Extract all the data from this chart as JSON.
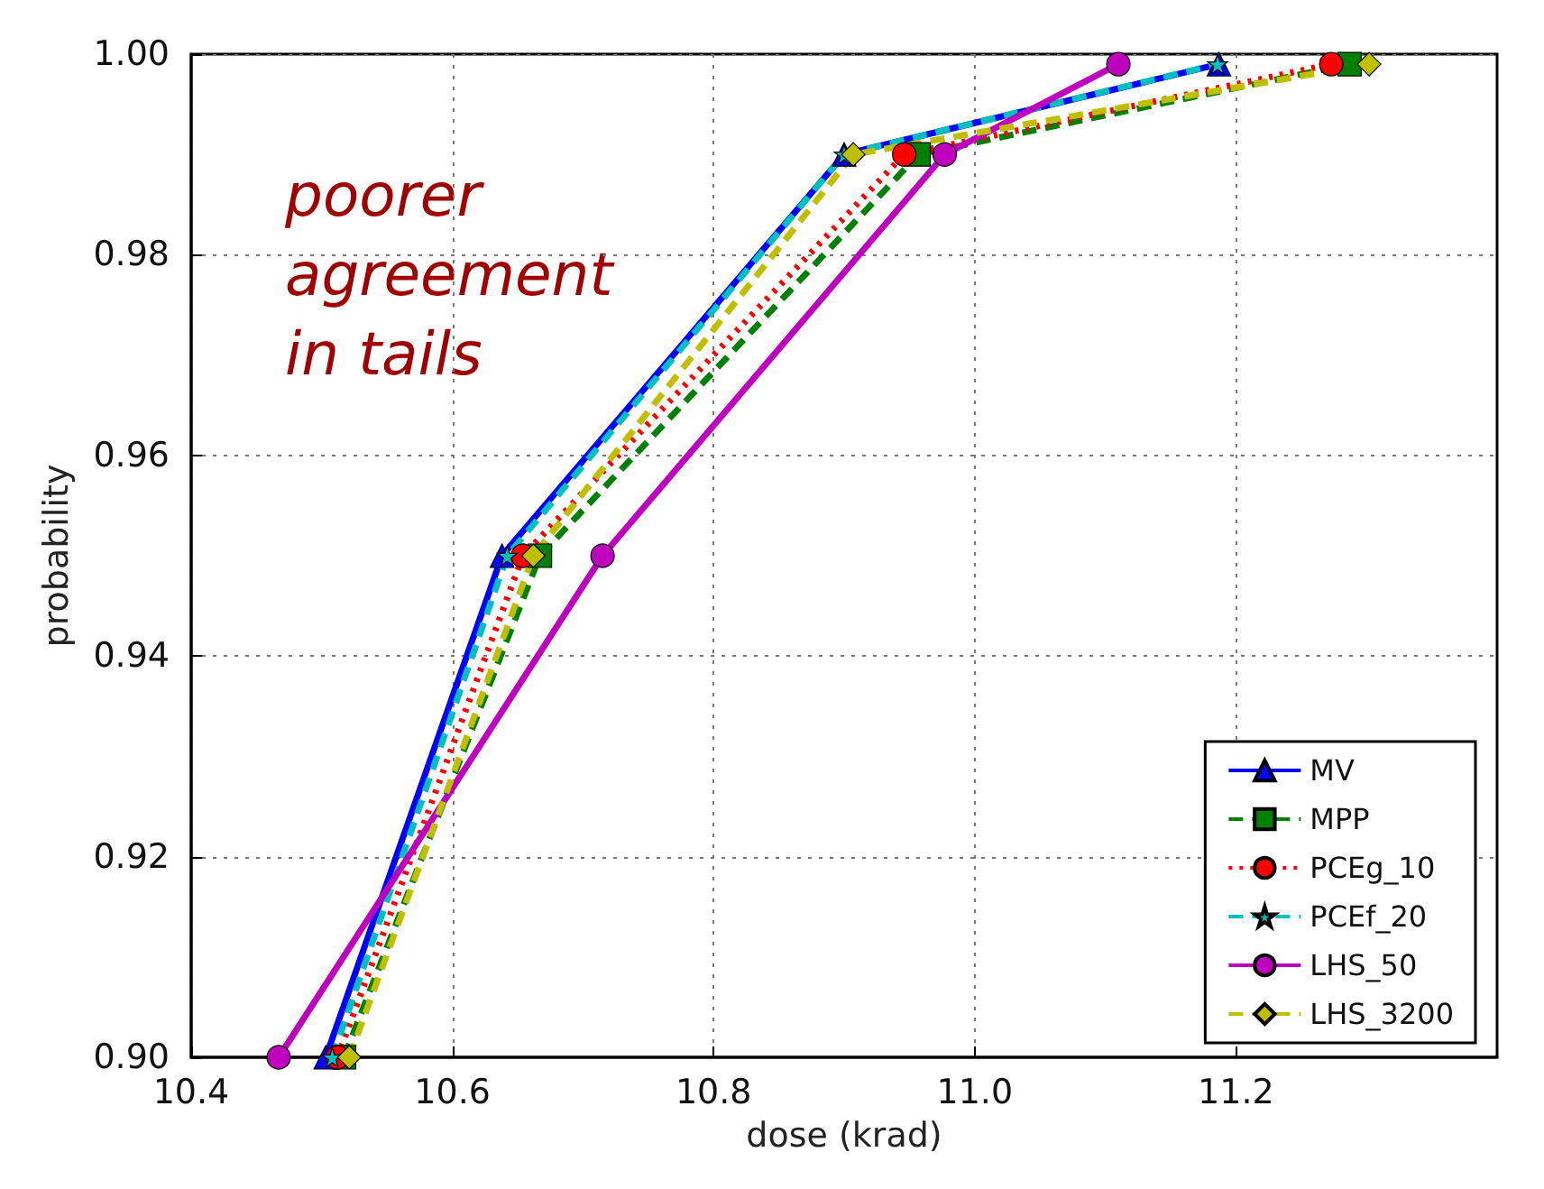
{
  "chart_data": {
    "type": "line",
    "xlabel": "dose (krad)",
    "ylabel": "probability",
    "xlim": [
      10.4,
      11.4
    ],
    "xticks": [
      10.4,
      10.6,
      10.8,
      {
        "value": 11,
        "label": "11.0"
      },
      11.2
    ],
    "ylim": [
      0.9,
      1
    ],
    "yticks": [
      {
        "value": 0.9,
        "label": "0.90"
      },
      {
        "value": 0.92,
        "label": "0.92"
      },
      {
        "value": 0.94,
        "label": "0.94"
      },
      {
        "value": 0.96,
        "label": "0.96"
      },
      {
        "value": 0.98,
        "label": "0.98"
      },
      {
        "value": 1,
        "label": "1.00"
      }
    ],
    "grid": true,
    "legend": "bottom right",
    "annotations": [
      "poorer\nagreement\nin tails"
    ],
    "series": [
      {
        "name": "MV",
        "color": "#0000ff",
        "marker": "triangle",
        "line_style": "solid",
        "x": [
          10.503,
          10.638,
          10.9,
          11.187
        ],
        "values": [
          0.9,
          0.95,
          0.99,
          0.999
        ]
      },
      {
        "name": "MPP",
        "color": "#008000",
        "marker": "square",
        "line_style": "dashed",
        "x": [
          10.517,
          10.667,
          10.957,
          11.287
        ],
        "values": [
          0.9,
          0.95,
          0.99,
          0.999
        ]
      },
      {
        "name": "PCEg_10",
        "color": "#ff0000",
        "marker": "circle",
        "line_style": "dotted",
        "x": [
          10.512,
          10.654,
          10.946,
          11.273
        ],
        "values": [
          0.9,
          0.95,
          0.99,
          0.999
        ]
      },
      {
        "name": "PCEf_20",
        "color": "#00bfbf",
        "marker": "star",
        "line_style": "dashed",
        "x": [
          10.508,
          10.642,
          10.9,
          11.186
        ],
        "values": [
          0.9,
          0.95,
          0.99,
          0.999
        ]
      },
      {
        "name": "LHS_50",
        "color": "#bf00bf",
        "marker": "circle",
        "line_style": "solid",
        "x": [
          10.467,
          10.715,
          10.977,
          11.11
        ],
        "values": [
          0.9,
          0.95,
          0.99,
          0.999
        ]
      },
      {
        "name": "LHS_3200",
        "color": "#bfbf00",
        "marker": "diamond",
        "line_style": "dashed",
        "x": [
          10.521,
          10.662,
          10.907,
          11.302
        ],
        "values": [
          0.9,
          0.95,
          0.99,
          0.999
        ]
      }
    ]
  }
}
